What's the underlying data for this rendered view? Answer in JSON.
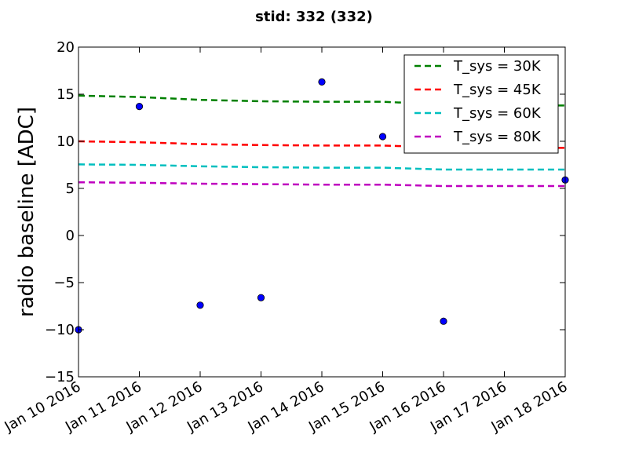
{
  "chart_data": {
    "type": "line",
    "title": "stid: 332 (332)",
    "xlabel": "",
    "ylabel": "radio baseline [ADC]",
    "x_tick_labels": [
      "Jan 10 2016",
      "Jan 11 2016",
      "Jan 12 2016",
      "Jan 13 2016",
      "Jan 14 2016",
      "Jan 15 2016",
      "Jan 16 2016",
      "Jan 17 2016",
      "Jan 18 2016"
    ],
    "xlim": [
      "2016-01-10",
      "2016-01-18"
    ],
    "ylim": [
      -15,
      20
    ],
    "y_ticks": [
      -15,
      -10,
      -5,
      0,
      5,
      10,
      15,
      20
    ],
    "y_tick_labels": [
      "−15",
      "−10",
      "−5",
      "0",
      "5",
      "10",
      "15",
      "20"
    ],
    "legend_position": "top-right",
    "grid": false,
    "scatter": {
      "color": "#0000ff",
      "x": [
        "2016-01-10",
        "2016-01-11",
        "2016-01-12",
        "2016-01-13",
        "2016-01-14",
        "2016-01-15",
        "2016-01-16",
        "2016-01-18"
      ],
      "y": [
        -10.0,
        13.7,
        -7.4,
        -6.6,
        16.3,
        10.5,
        -9.1,
        5.9
      ]
    },
    "series": [
      {
        "name": "T_sys = 30K",
        "color": "#008000",
        "style": "dashed",
        "x": [
          "2016-01-10",
          "2016-01-11",
          "2016-01-12",
          "2016-01-13",
          "2016-01-14",
          "2016-01-15",
          "2016-01-16",
          "2016-01-17",
          "2016-01-18"
        ],
        "y": [
          14.85,
          14.7,
          14.4,
          14.25,
          14.2,
          14.2,
          13.9,
          13.85,
          13.8
        ]
      },
      {
        "name": "T_sys = 45K",
        "color": "#ff0000",
        "style": "dashed",
        "x": [
          "2016-01-10",
          "2016-01-11",
          "2016-01-12",
          "2016-01-13",
          "2016-01-14",
          "2016-01-15",
          "2016-01-16",
          "2016-01-17",
          "2016-01-18"
        ],
        "y": [
          10.0,
          9.9,
          9.7,
          9.6,
          9.55,
          9.55,
          9.35,
          9.35,
          9.3
        ]
      },
      {
        "name": "T_sys = 60K",
        "color": "#00bfbf",
        "style": "dashed",
        "x": [
          "2016-01-10",
          "2016-01-11",
          "2016-01-12",
          "2016-01-13",
          "2016-01-14",
          "2016-01-15",
          "2016-01-16",
          "2016-01-17",
          "2016-01-18"
        ],
        "y": [
          7.55,
          7.5,
          7.35,
          7.25,
          7.2,
          7.2,
          7.0,
          7.0,
          7.0
        ]
      },
      {
        "name": "T_sys = 80K",
        "color": "#bf00bf",
        "style": "dashed",
        "x": [
          "2016-01-10",
          "2016-01-11",
          "2016-01-12",
          "2016-01-13",
          "2016-01-14",
          "2016-01-15",
          "2016-01-16",
          "2016-01-17",
          "2016-01-18"
        ],
        "y": [
          5.65,
          5.6,
          5.5,
          5.45,
          5.4,
          5.4,
          5.25,
          5.25,
          5.25
        ]
      }
    ]
  }
}
